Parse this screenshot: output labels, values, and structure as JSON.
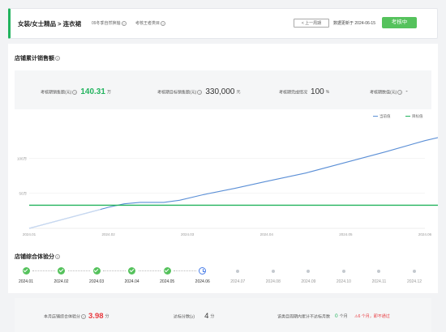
{
  "header": {
    "breadcrumb": "女装/女士精品 > 连衣裙",
    "season": "09冬季自然换轴",
    "metric": "考核王者类目",
    "prev_label": "< 上一周期",
    "update_label": "数据更新于",
    "update_date": "2024-06-15",
    "status_label": "考核中"
  },
  "sales": {
    "title": "店铺累计销售额",
    "stats": [
      {
        "label": "考核期销售额(元)",
        "value": "140.31",
        "unit": "万",
        "highlight": true
      },
      {
        "label": "考核期目标销售额(元)",
        "value": "330,000",
        "unit": "元",
        "highlight": false
      },
      {
        "label": "考核期完成情况",
        "value": "100",
        "unit": "%",
        "highlight": false
      },
      {
        "label": "考核期数值(元)",
        "value": "-",
        "unit": "",
        "highlight": false
      }
    ],
    "legend": {
      "current": "当前值",
      "target": "目标值"
    }
  },
  "chart_data": {
    "type": "line",
    "x": [
      "2024.01",
      "2024.02",
      "2024.03",
      "2024.04",
      "2024.05",
      "2024.06"
    ],
    "y_ticks": [
      "50万",
      "100万"
    ],
    "ylim": [
      0,
      150
    ],
    "series": [
      {
        "name": "当前值",
        "color": "#5b8fd6",
        "points": [
          [
            0,
            0
          ],
          [
            0.5,
            15
          ],
          [
            0.9,
            27
          ],
          [
            1.0,
            30
          ],
          [
            1.2,
            35
          ],
          [
            1.4,
            37
          ],
          [
            1.7,
            37
          ],
          [
            1.9,
            40
          ],
          [
            2.2,
            48
          ],
          [
            2.6,
            57
          ],
          [
            3.0,
            67
          ],
          [
            3.5,
            79
          ],
          [
            4.0,
            94
          ],
          [
            4.5,
            109
          ],
          [
            5.0,
            125
          ],
          [
            5.5,
            138
          ],
          [
            6.0,
            147
          ]
        ]
      },
      {
        "name": "目标值",
        "color": "#22b35e",
        "points": [
          [
            0,
            33
          ],
          [
            6,
            33
          ]
        ]
      }
    ]
  },
  "score": {
    "title": "店铺综合体验分",
    "months": [
      {
        "label": "2024.01",
        "state": "done"
      },
      {
        "label": "2024.02",
        "state": "done"
      },
      {
        "label": "2024.03",
        "state": "done"
      },
      {
        "label": "2024.04",
        "state": "done"
      },
      {
        "label": "2024.05",
        "state": "done"
      },
      {
        "label": "2024.06",
        "state": "current"
      },
      {
        "label": "2024.07",
        "state": "future"
      },
      {
        "label": "2024.08",
        "state": "future"
      },
      {
        "label": "2024.09",
        "state": "future"
      },
      {
        "label": "2024.10",
        "state": "future"
      },
      {
        "label": "2024.11",
        "state": "future"
      },
      {
        "label": "2024.12",
        "state": "future"
      }
    ]
  },
  "bottom": {
    "score_label": "本月店铺综合体验分",
    "score_value": "3.98",
    "score_unit": "分",
    "standard_label": "达标分数(≥)",
    "standard_value": "4",
    "standard_unit": "分",
    "fail_label": "该类目周期内累计不达标月数",
    "fail_value": "0",
    "fail_unit": "个月",
    "alert": "⚠6 个月，即不通过"
  },
  "colors": {
    "accent": "#22b35e",
    "line": "#5b8fd6",
    "alert": "#e8383d"
  }
}
